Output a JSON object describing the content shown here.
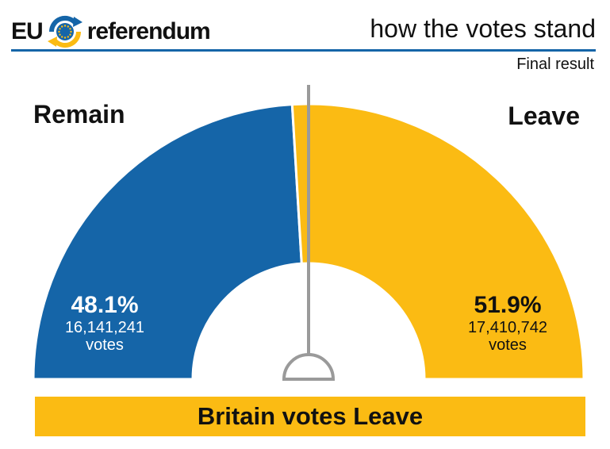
{
  "header": {
    "logo_left": "EU",
    "logo_right": "referendum",
    "title": "how the votes stand",
    "subtitle": "Final result"
  },
  "colors": {
    "remain": "#1565a8",
    "leave": "#fbbb13",
    "needle": "#9a9a9a"
  },
  "chart_data": {
    "type": "pie",
    "shape": "half-donut",
    "title": "how the votes stand",
    "subtitle": "Final result",
    "categories": [
      "Remain",
      "Leave"
    ],
    "values": [
      48.1,
      51.9
    ],
    "votes": [
      16141241,
      17410742
    ],
    "series": [
      {
        "name": "Remain",
        "percent_label": "48.1%",
        "votes_label": "16,141,241",
        "unit": "votes",
        "value": 48.1
      },
      {
        "name": "Leave",
        "percent_label": "51.9%",
        "votes_label": "17,410,742",
        "unit": "votes",
        "value": 51.9
      }
    ],
    "threshold": 50
  },
  "banner": {
    "text": "Britain votes Leave"
  }
}
